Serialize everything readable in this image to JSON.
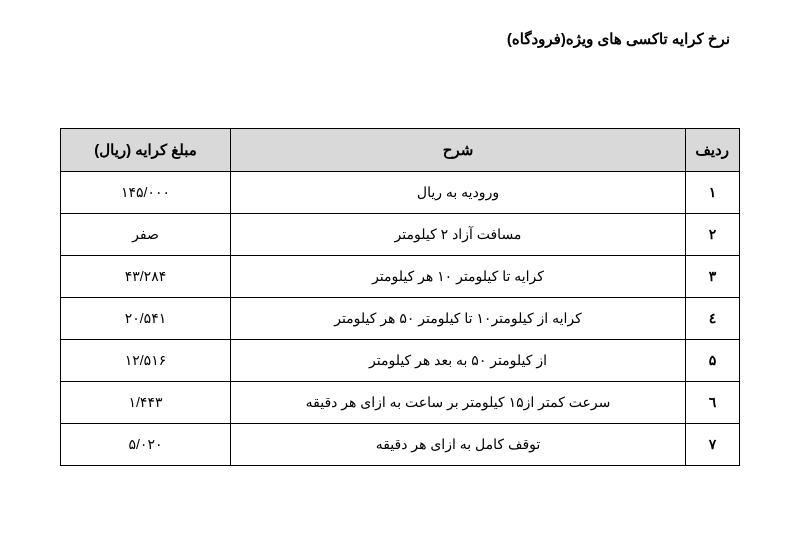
{
  "title": "نرخ کرایه تاکسی های ویژه(فرودگاه)",
  "columns": {
    "row": "ردیف",
    "desc": "شرح",
    "fare": "مبلغ کرایه (ریال)"
  },
  "rows": [
    {
      "num": "۱",
      "desc": "ورودیه به ریال",
      "fare": "۱۴۵/۰۰۰"
    },
    {
      "num": "۲",
      "desc": "مسافت آزاد ۲ کیلومتر",
      "fare": "صفر"
    },
    {
      "num": "۳",
      "desc": "کرایه تا کیلومتر ۱۰ هر کیلومتر",
      "fare": "۴۳/۲۸۴"
    },
    {
      "num": "٤",
      "desc": "کرایه از کیلومتر۱۰ تا کیلومتر ۵۰ هر کیلومتر",
      "fare": "۲۰/۵۴۱"
    },
    {
      "num": "۵",
      "desc": "از کیلومتر ۵۰ به بعد هر کیلومتر",
      "fare": "۱۲/۵۱۶"
    },
    {
      "num": "٦",
      "desc": "سرعت کمتر از۱۵ کیلومتر بر ساعت به ازای هر دقیقه",
      "fare": "۱/۴۴۳"
    },
    {
      "num": "۷",
      "desc": "توقف کامل به ازای هر دقیقه",
      "fare": "۵/۰۲۰"
    }
  ]
}
